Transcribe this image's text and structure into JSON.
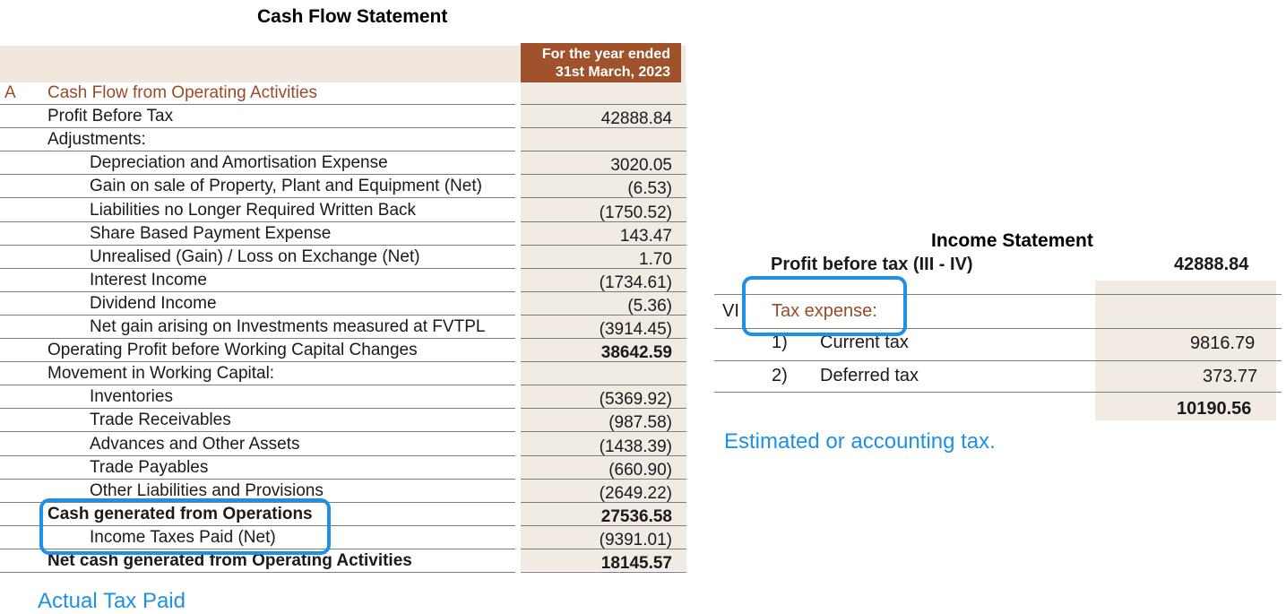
{
  "cash_flow": {
    "title": "Cash Flow Statement",
    "column_header_line1": "For the year ended",
    "column_header_line2": "31st March, 2023",
    "rows": [
      {
        "letter": "A",
        "label": "Cash Flow from Operating Activities",
        "value": "",
        "style": "section",
        "indent": 0
      },
      {
        "letter": "",
        "label": "Profit Before Tax",
        "value": "42888.84",
        "style": "normal",
        "indent": 0
      },
      {
        "letter": "",
        "label": "Adjustments:",
        "value": "",
        "style": "normal",
        "indent": 0
      },
      {
        "letter": "",
        "label": "Depreciation and Amortisation Expense",
        "value": "3020.05",
        "style": "normal",
        "indent": 1
      },
      {
        "letter": "",
        "label": "Gain on sale of Property, Plant and Equipment (Net)",
        "value": "(6.53)",
        "style": "normal",
        "indent": 1
      },
      {
        "letter": "",
        "label": "Liabilities no Longer Required Written Back",
        "value": "(1750.52)",
        "style": "normal",
        "indent": 1
      },
      {
        "letter": "",
        "label": "Share Based Payment Expense",
        "value": "143.47",
        "style": "normal",
        "indent": 1
      },
      {
        "letter": "",
        "label": "Unrealised (Gain) / Loss on Exchange (Net)",
        "value": "1.70",
        "style": "normal",
        "indent": 1
      },
      {
        "letter": "",
        "label": "Interest Income",
        "value": "(1734.61)",
        "style": "normal",
        "indent": 1
      },
      {
        "letter": "",
        "label": "Dividend Income",
        "value": "(5.36)",
        "style": "normal",
        "indent": 1
      },
      {
        "letter": "",
        "label": "Net gain arising on Investments measured at FVTPL",
        "value": "(3914.45)",
        "style": "normal",
        "indent": 1
      },
      {
        "letter": "",
        "label": "Operating Profit before Working Capital Changes",
        "value": "38642.59",
        "style": "value-bold",
        "indent": 0
      },
      {
        "letter": "",
        "label": "Movement in Working Capital:",
        "value": "",
        "style": "normal",
        "indent": 0
      },
      {
        "letter": "",
        "label": "Inventories",
        "value": "(5369.92)",
        "style": "normal",
        "indent": 1
      },
      {
        "letter": "",
        "label": "Trade Receivables",
        "value": "(987.58)",
        "style": "normal",
        "indent": 1
      },
      {
        "letter": "",
        "label": "Advances and Other Assets",
        "value": "(1438.39)",
        "style": "normal",
        "indent": 1
      },
      {
        "letter": "",
        "label": "Trade Payables",
        "value": "(660.90)",
        "style": "normal",
        "indent": 1
      },
      {
        "letter": "",
        "label": "Other Liabilities and Provisions",
        "value": "(2649.22)",
        "style": "normal",
        "indent": 1
      },
      {
        "letter": "",
        "label": "Cash generated from Operations",
        "value": "27536.58",
        "style": "bold",
        "indent": 0
      },
      {
        "letter": "",
        "label": "Income Taxes Paid (Net)",
        "value": "(9391.01)",
        "style": "normal",
        "indent": 1
      },
      {
        "letter": "",
        "label": "Net cash generated from Operating Activities",
        "value": "18145.57",
        "style": "bold",
        "indent": 0
      }
    ]
  },
  "income_statement": {
    "title": "Income Statement",
    "partial_row_label": "Profit before tax (III - IV)",
    "partial_row_value": "42888.84",
    "roman": "VI",
    "tax_expense_label": "Tax expense:",
    "items": [
      {
        "num": "1)",
        "label": "Current tax",
        "value": "9816.79"
      },
      {
        "num": "2)",
        "label": "Deferred tax",
        "value": "373.77"
      }
    ],
    "total": "10190.56"
  },
  "annotations": {
    "estimated_note": "Estimated or accounting tax.",
    "actual_note": "Actual Tax Paid",
    "highlight_color": "#1e90e6"
  },
  "colors": {
    "header_brown": "#a0522d",
    "section_text": "#9b4a26",
    "value_shade": "#f2ebe4"
  }
}
